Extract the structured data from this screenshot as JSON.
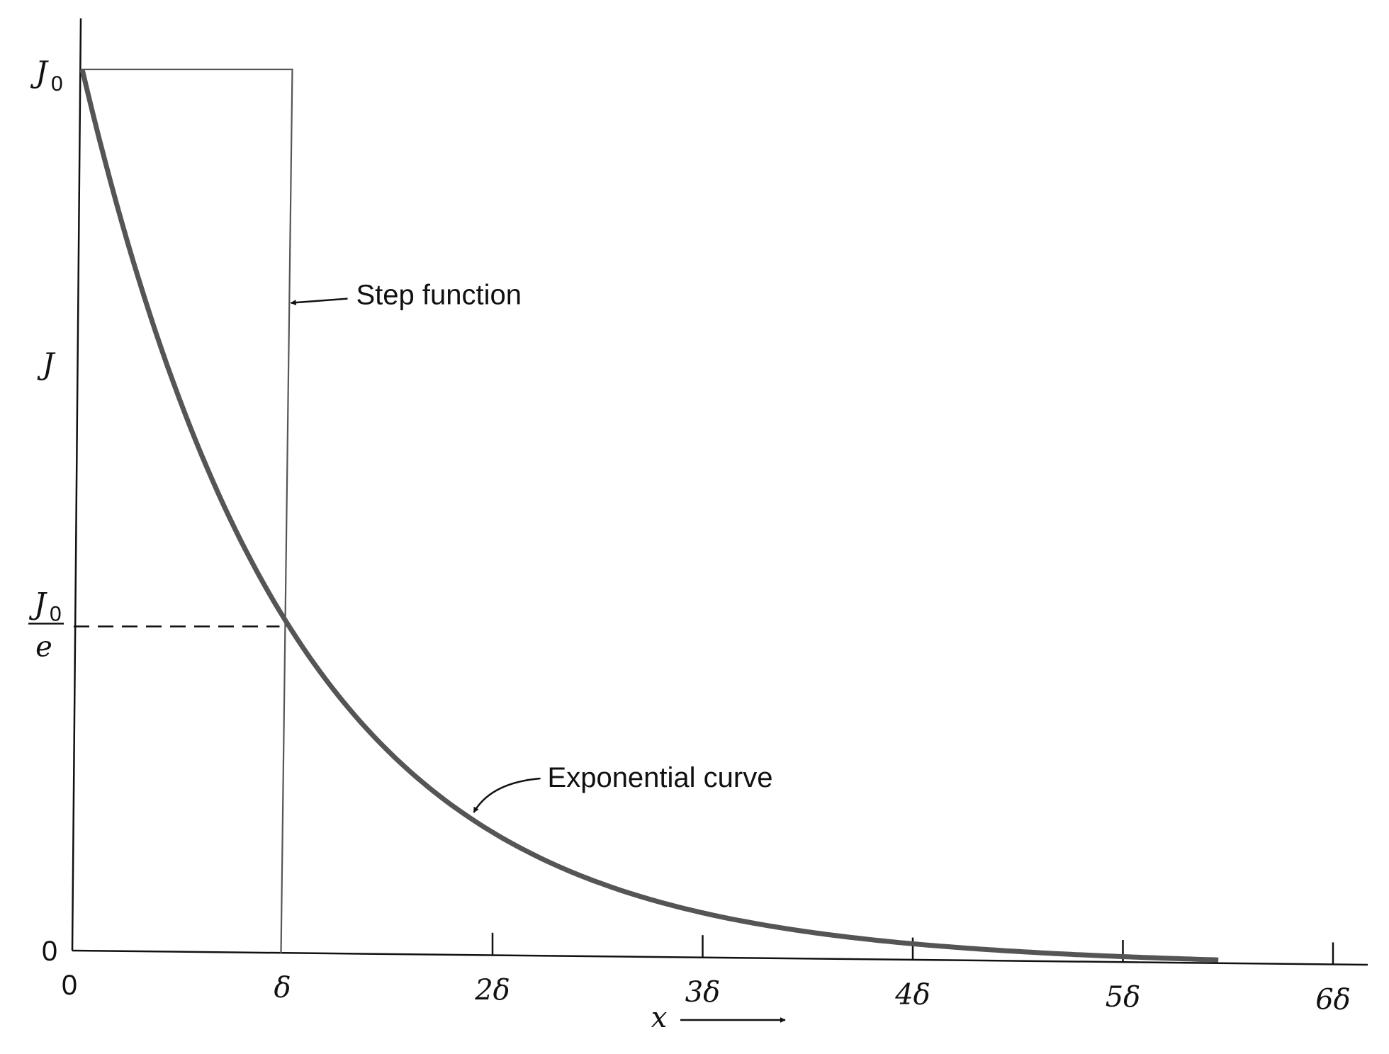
{
  "chart_data": {
    "type": "line",
    "title": "",
    "xlabel": "x",
    "ylabel": "J",
    "xlim": [
      0,
      6
    ],
    "ylim": [
      0,
      1
    ],
    "x_ticks": [
      {
        "value": 0,
        "label": "0"
      },
      {
        "value": 1,
        "label": "δ"
      },
      {
        "value": 2,
        "label": "2δ"
      },
      {
        "value": 3,
        "label": "3δ"
      },
      {
        "value": 4,
        "label": "4δ"
      },
      {
        "value": 5,
        "label": "5δ"
      },
      {
        "value": 6,
        "label": "6δ"
      }
    ],
    "y_ticks": [
      {
        "value": 1,
        "label": "J0",
        "num": "J",
        "sub": "0"
      },
      {
        "value": 0.3679,
        "label": "J0/e",
        "num": "J",
        "sub": "0",
        "den": "e"
      },
      {
        "value": 0,
        "label": "0"
      }
    ],
    "series": [
      {
        "name": "Exponential curve",
        "kind": "exponential",
        "x_start": 0,
        "x_end": 5.45,
        "amplitude": 1,
        "decay_length": 1
      },
      {
        "name": "Step function",
        "kind": "step",
        "points": [
          [
            0,
            1
          ],
          [
            1,
            1
          ],
          [
            1,
            0
          ]
        ]
      }
    ],
    "reference_lines": [
      {
        "kind": "dashed-horizontal",
        "y": 0.3679,
        "x_from": 0,
        "x_to": 1
      }
    ],
    "annotations": [
      {
        "text": "Step function",
        "target_series": "Step function",
        "target_x": 1,
        "target_y": 0.735
      },
      {
        "text": "Exponential curve",
        "target_series": "Exponential curve",
        "target_x": 1.85,
        "target_y": 0.157
      }
    ],
    "grid": false,
    "legend": "none"
  }
}
